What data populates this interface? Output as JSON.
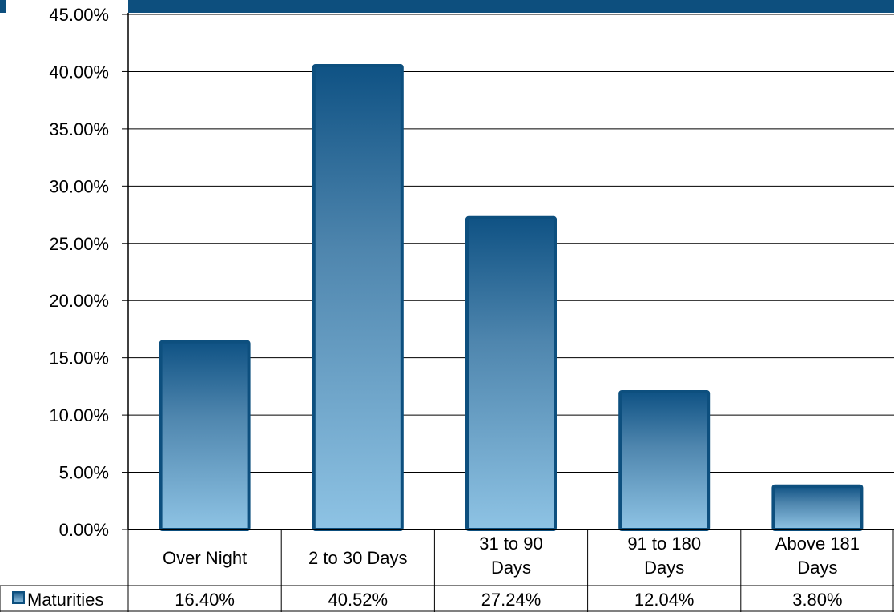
{
  "colors": {
    "bar_top": "#0f5284",
    "bar_bottom": "#8ec3e4",
    "bar_stroke": "#0d4f7e",
    "band": "#0d4f7e"
  },
  "chart_data": {
    "type": "bar",
    "title": "",
    "xlabel": "",
    "ylabel": "",
    "ylim": [
      0,
      45
    ],
    "yticks": [
      "0.00%",
      "5.00%",
      "10.00%",
      "15.00%",
      "20.00%",
      "25.00%",
      "30.00%",
      "35.00%",
      "40.00%",
      "45.00%"
    ],
    "categories": [
      [
        "Over Night"
      ],
      [
        "2 to 30 Days"
      ],
      [
        "31 to 90",
        "Days"
      ],
      [
        "91 to 180",
        "Days"
      ],
      [
        "Above 181",
        "Days"
      ]
    ],
    "series": [
      {
        "name": "Maturities",
        "values": [
          16.4,
          40.52,
          27.24,
          12.04,
          3.8
        ],
        "value_labels": [
          "16.40%",
          "40.52%",
          "27.24%",
          "12.04%",
          "3.80%"
        ]
      }
    ],
    "grid": true,
    "legend": "data-table-left"
  }
}
